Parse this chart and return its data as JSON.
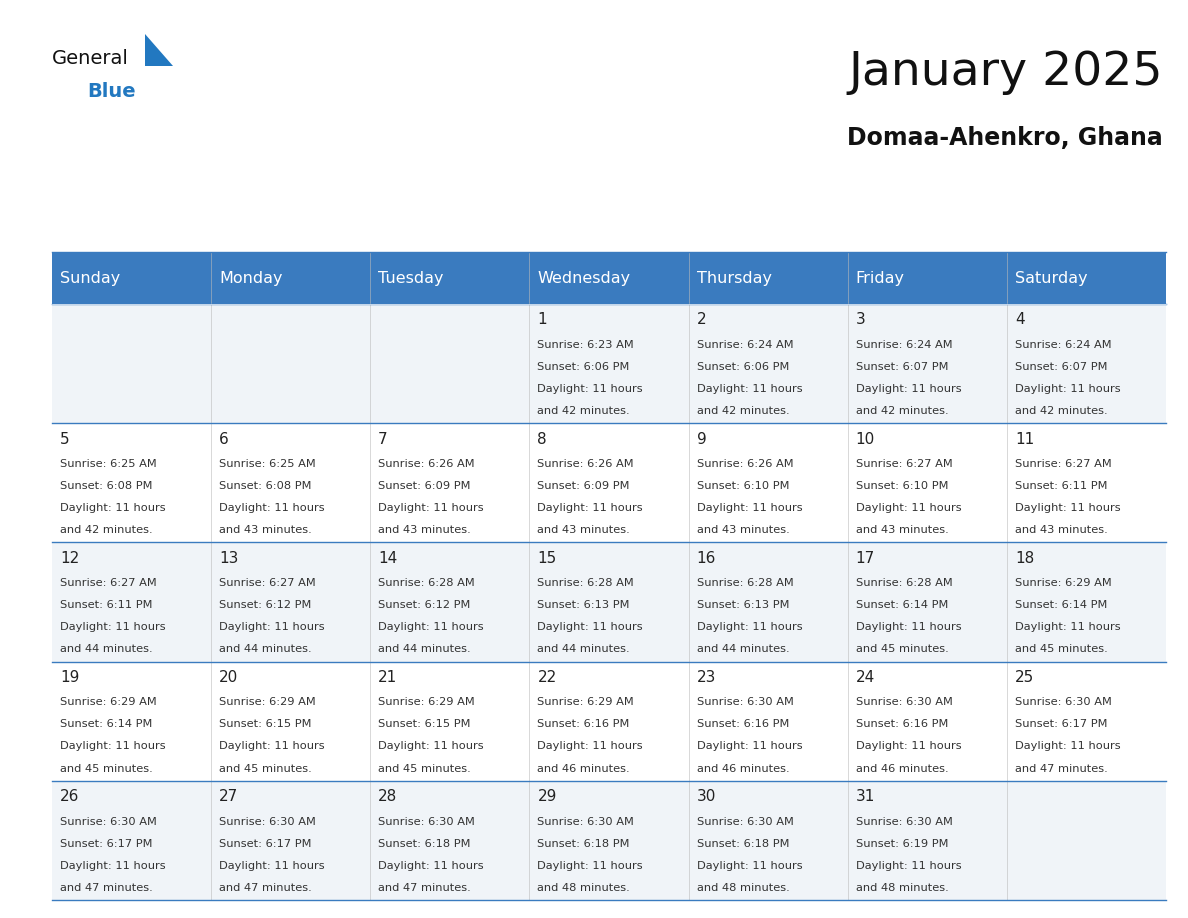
{
  "title": "January 2025",
  "subtitle": "Domaa-Ahenkro, Ghana",
  "days_of_week": [
    "Sunday",
    "Monday",
    "Tuesday",
    "Wednesday",
    "Thursday",
    "Friday",
    "Saturday"
  ],
  "header_bg": "#3a7bbf",
  "header_text": "#ffffff",
  "row_bg_even": "#f0f4f8",
  "row_bg_odd": "#ffffff",
  "cell_border": "#3a7bbf",
  "text_color": "#333333",
  "day_num_color": "#222222",
  "calendar": [
    [
      null,
      null,
      null,
      {
        "day": 1,
        "sunrise": "6:23 AM",
        "sunset": "6:06 PM",
        "daylight_h": "11 hours",
        "daylight_m": "and 42 minutes."
      },
      {
        "day": 2,
        "sunrise": "6:24 AM",
        "sunset": "6:06 PM",
        "daylight_h": "11 hours",
        "daylight_m": "and 42 minutes."
      },
      {
        "day": 3,
        "sunrise": "6:24 AM",
        "sunset": "6:07 PM",
        "daylight_h": "11 hours",
        "daylight_m": "and 42 minutes."
      },
      {
        "day": 4,
        "sunrise": "6:24 AM",
        "sunset": "6:07 PM",
        "daylight_h": "11 hours",
        "daylight_m": "and 42 minutes."
      }
    ],
    [
      {
        "day": 5,
        "sunrise": "6:25 AM",
        "sunset": "6:08 PM",
        "daylight_h": "11 hours",
        "daylight_m": "and 42 minutes."
      },
      {
        "day": 6,
        "sunrise": "6:25 AM",
        "sunset": "6:08 PM",
        "daylight_h": "11 hours",
        "daylight_m": "and 43 minutes."
      },
      {
        "day": 7,
        "sunrise": "6:26 AM",
        "sunset": "6:09 PM",
        "daylight_h": "11 hours",
        "daylight_m": "and 43 minutes."
      },
      {
        "day": 8,
        "sunrise": "6:26 AM",
        "sunset": "6:09 PM",
        "daylight_h": "11 hours",
        "daylight_m": "and 43 minutes."
      },
      {
        "day": 9,
        "sunrise": "6:26 AM",
        "sunset": "6:10 PM",
        "daylight_h": "11 hours",
        "daylight_m": "and 43 minutes."
      },
      {
        "day": 10,
        "sunrise": "6:27 AM",
        "sunset": "6:10 PM",
        "daylight_h": "11 hours",
        "daylight_m": "and 43 minutes."
      },
      {
        "day": 11,
        "sunrise": "6:27 AM",
        "sunset": "6:11 PM",
        "daylight_h": "11 hours",
        "daylight_m": "and 43 minutes."
      }
    ],
    [
      {
        "day": 12,
        "sunrise": "6:27 AM",
        "sunset": "6:11 PM",
        "daylight_h": "11 hours",
        "daylight_m": "and 44 minutes."
      },
      {
        "day": 13,
        "sunrise": "6:27 AM",
        "sunset": "6:12 PM",
        "daylight_h": "11 hours",
        "daylight_m": "and 44 minutes."
      },
      {
        "day": 14,
        "sunrise": "6:28 AM",
        "sunset": "6:12 PM",
        "daylight_h": "11 hours",
        "daylight_m": "and 44 minutes."
      },
      {
        "day": 15,
        "sunrise": "6:28 AM",
        "sunset": "6:13 PM",
        "daylight_h": "11 hours",
        "daylight_m": "and 44 minutes."
      },
      {
        "day": 16,
        "sunrise": "6:28 AM",
        "sunset": "6:13 PM",
        "daylight_h": "11 hours",
        "daylight_m": "and 44 minutes."
      },
      {
        "day": 17,
        "sunrise": "6:28 AM",
        "sunset": "6:14 PM",
        "daylight_h": "11 hours",
        "daylight_m": "and 45 minutes."
      },
      {
        "day": 18,
        "sunrise": "6:29 AM",
        "sunset": "6:14 PM",
        "daylight_h": "11 hours",
        "daylight_m": "and 45 minutes."
      }
    ],
    [
      {
        "day": 19,
        "sunrise": "6:29 AM",
        "sunset": "6:14 PM",
        "daylight_h": "11 hours",
        "daylight_m": "and 45 minutes."
      },
      {
        "day": 20,
        "sunrise": "6:29 AM",
        "sunset": "6:15 PM",
        "daylight_h": "11 hours",
        "daylight_m": "and 45 minutes."
      },
      {
        "day": 21,
        "sunrise": "6:29 AM",
        "sunset": "6:15 PM",
        "daylight_h": "11 hours",
        "daylight_m": "and 45 minutes."
      },
      {
        "day": 22,
        "sunrise": "6:29 AM",
        "sunset": "6:16 PM",
        "daylight_h": "11 hours",
        "daylight_m": "and 46 minutes."
      },
      {
        "day": 23,
        "sunrise": "6:30 AM",
        "sunset": "6:16 PM",
        "daylight_h": "11 hours",
        "daylight_m": "and 46 minutes."
      },
      {
        "day": 24,
        "sunrise": "6:30 AM",
        "sunset": "6:16 PM",
        "daylight_h": "11 hours",
        "daylight_m": "and 46 minutes."
      },
      {
        "day": 25,
        "sunrise": "6:30 AM",
        "sunset": "6:17 PM",
        "daylight_h": "11 hours",
        "daylight_m": "and 47 minutes."
      }
    ],
    [
      {
        "day": 26,
        "sunrise": "6:30 AM",
        "sunset": "6:17 PM",
        "daylight_h": "11 hours",
        "daylight_m": "and 47 minutes."
      },
      {
        "day": 27,
        "sunrise": "6:30 AM",
        "sunset": "6:17 PM",
        "daylight_h": "11 hours",
        "daylight_m": "and 47 minutes."
      },
      {
        "day": 28,
        "sunrise": "6:30 AM",
        "sunset": "6:18 PM",
        "daylight_h": "11 hours",
        "daylight_m": "and 47 minutes."
      },
      {
        "day": 29,
        "sunrise": "6:30 AM",
        "sunset": "6:18 PM",
        "daylight_h": "11 hours",
        "daylight_m": "and 48 minutes."
      },
      {
        "day": 30,
        "sunrise": "6:30 AM",
        "sunset": "6:18 PM",
        "daylight_h": "11 hours",
        "daylight_m": "and 48 minutes."
      },
      {
        "day": 31,
        "sunrise": "6:30 AM",
        "sunset": "6:19 PM",
        "daylight_h": "11 hours",
        "daylight_m": "and 48 minutes."
      },
      null
    ]
  ],
  "logo_general_color": "#111111",
  "logo_blue_color": "#2278c0",
  "logo_triangle_color": "#2278c0",
  "fig_width": 11.88,
  "fig_height": 9.18,
  "dpi": 100
}
